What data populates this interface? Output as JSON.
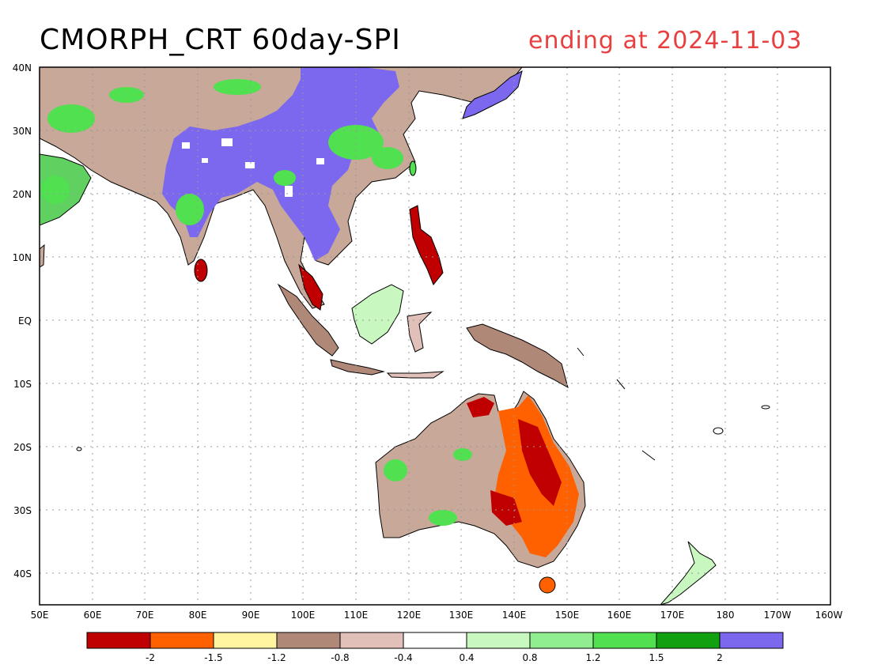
{
  "title": "CMORPH_CRT 60day-SPI",
  "subtitle": "ending at 2024-11-03",
  "lat_labels": [
    "40N",
    "30N",
    "20N",
    "10N",
    "EQ",
    "10S",
    "20S",
    "30S",
    "40S"
  ],
  "lon_labels": [
    "50E",
    "60E",
    "70E",
    "80E",
    "90E",
    "100E",
    "110E",
    "120E",
    "130E",
    "140E",
    "150E",
    "160E",
    "170E",
    "180",
    "170W",
    "160W"
  ],
  "colorbar": {
    "colors": [
      "#c00000",
      "#ff6000",
      "#fff5a0",
      "#b08878",
      "#e0c0b8",
      "#ffffff",
      "#c8f8c0",
      "#90ee90",
      "#50e050",
      "#10a010",
      "#7b68ee"
    ],
    "tick_labels": [
      "-2",
      "-1.5",
      "-1.2",
      "-0.8",
      "-0.4",
      "0.4",
      "0.8",
      "1.2",
      "1.5",
      "2"
    ]
  },
  "colors": {
    "land_outline": "#000000",
    "grid": "#999999",
    "subtitle": "#e84040"
  }
}
